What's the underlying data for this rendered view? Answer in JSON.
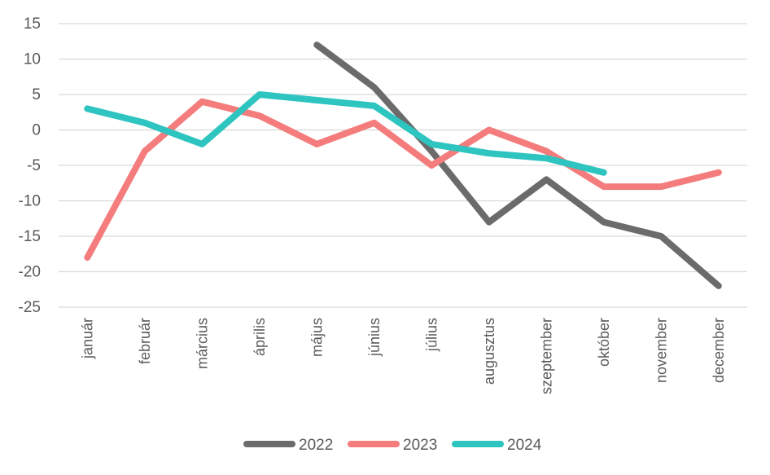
{
  "chart_data": {
    "type": "line",
    "title": "",
    "xlabel": "",
    "ylabel": "",
    "categories": [
      "január",
      "február",
      "március",
      "április",
      "május",
      "június",
      "július",
      "augusztus",
      "szeptember",
      "október",
      "november",
      "december"
    ],
    "ylim": [
      -25,
      15
    ],
    "yticks": [
      15,
      10,
      5,
      0,
      -5,
      -10,
      -15,
      -20,
      -25
    ],
    "grid": true,
    "legend_position": "bottom",
    "series": [
      {
        "name": "2022",
        "color": "#6b6b6b",
        "values": [
          null,
          null,
          null,
          null,
          12,
          6,
          -3,
          -13,
          -7,
          -13,
          -15,
          -22
        ]
      },
      {
        "name": "2023",
        "color": "#f47c7c",
        "values": [
          -18,
          -3,
          4,
          2,
          -2,
          1,
          -5,
          0,
          -3,
          -8,
          -8,
          -6
        ]
      },
      {
        "name": "2024",
        "color": "#2ec4c0",
        "values": [
          3,
          1,
          -2,
          5,
          4.2,
          3.4,
          -2,
          -3.3,
          -4,
          -6,
          null,
          null
        ]
      }
    ]
  }
}
